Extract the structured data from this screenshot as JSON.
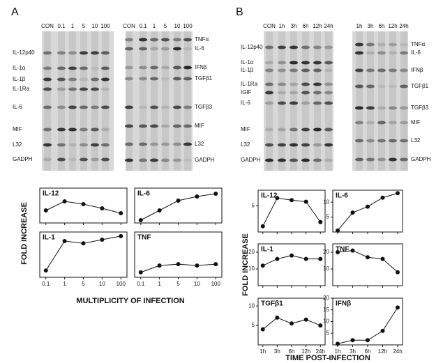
{
  "panels": [
    {
      "label": "A",
      "y_label": "FOLD INCREASE",
      "x_label": "MULTIPLICITY OF INFECTION",
      "gels": [
        {
          "lanes": [
            "CON",
            "0.1",
            "1",
            "5",
            "10",
            "100"
          ],
          "band_labels": [
            "IL-12p40",
            "IL-1α",
            "IL-1β",
            "IL-1Ra",
            "IL-6",
            "MIF",
            "L32",
            "GADPH"
          ]
        },
        {
          "lanes": [
            "CON",
            "0.1",
            "1",
            "5",
            "10",
            "100"
          ],
          "band_labels": [
            "TNFα",
            "IL-6",
            "IFNβ",
            "TGFβ1",
            "TGFβ3",
            "MIF",
            "L32",
            "GADPH"
          ]
        }
      ]
    },
    {
      "label": "B",
      "y_label": "FOLD INCREASE",
      "x_label": "TIME  POST-INFECTION",
      "gels": [
        {
          "lanes": [
            "CON",
            "1h",
            "3h",
            "6h",
            "12h",
            "24h"
          ],
          "band_labels": [
            "IL-12p40",
            "IL-1α",
            "IL-1β",
            "IL-1Ra",
            "IGIF",
            "IL-6",
            "MIF",
            "L32",
            "GADPH"
          ]
        },
        {
          "lanes": [
            "1h",
            "3h",
            "6h",
            "12h",
            "24h"
          ],
          "band_labels": [
            "TNFα",
            "IL-6",
            "IFNβ",
            "TGFβ1",
            "TGFβ3",
            "MIF",
            "L32",
            "GADPH"
          ]
        }
      ]
    }
  ],
  "chart_data": [
    {
      "type": "line",
      "title": "IL-12",
      "categories": [
        "0.1",
        "1",
        "5",
        "10",
        "100"
      ],
      "values": [
        36,
        62,
        54,
        42,
        28
      ],
      "ylim": [
        0,
        100
      ],
      "yticks": [],
      "xtick_labels": false
    },
    {
      "type": "line",
      "title": "IL-6",
      "categories": [
        "0.1",
        "1",
        "5",
        "10",
        "100"
      ],
      "values": [
        8,
        36,
        64,
        76,
        84
      ],
      "ylim": [
        0,
        100
      ],
      "yticks": [],
      "xtick_labels": false
    },
    {
      "type": "line",
      "title": "IL-1",
      "categories": [
        "0.1",
        "1",
        "5",
        "10",
        "100"
      ],
      "values": [
        15,
        80,
        75,
        83,
        91
      ],
      "ylim": [
        0,
        100
      ],
      "yticks": [],
      "xtick_labels": true
    },
    {
      "type": "line",
      "title": "TNF",
      "categories": [
        "0.1",
        "1",
        "5",
        "10",
        "100"
      ],
      "values": [
        11,
        26,
        29,
        26,
        29
      ],
      "ylim": [
        0,
        100
      ],
      "yticks": [],
      "xtick_labels": true
    },
    {
      "type": "line",
      "title": "IL-12",
      "categories": [
        "1h",
        "3h",
        "6h",
        "12h",
        "24h"
      ],
      "values": [
        1.1,
        6.5,
        6.1,
        5.8,
        1.9
      ],
      "ylim": [
        0,
        8
      ],
      "yticks": [
        5
      ],
      "xtick_labels": false
    },
    {
      "type": "line",
      "title": "IL-6",
      "categories": [
        "1h",
        "3h",
        "6h",
        "12h",
        "24h"
      ],
      "values": [
        0.5,
        6.5,
        8.5,
        11.5,
        13
      ],
      "ylim": [
        0,
        14
      ],
      "yticks": [
        5,
        10
      ],
      "xtick_labels": false
    },
    {
      "type": "line",
      "title": "IL-1",
      "categories": [
        "1h",
        "3h",
        "6h",
        "12h",
        "24h"
      ],
      "values": [
        12,
        16,
        18,
        16,
        16
      ],
      "ylim": [
        0,
        25
      ],
      "yticks": [
        10,
        20
      ],
      "xtick_labels": false
    },
    {
      "type": "line",
      "title": "TNF",
      "categories": [
        "1h",
        "3h",
        "6h",
        "12h",
        "24h"
      ],
      "values": [
        20,
        21,
        17,
        16,
        8
      ],
      "ylim": [
        0,
        25
      ],
      "yticks": [
        10,
        20
      ],
      "xtick_labels": false
    },
    {
      "type": "line",
      "title": "TGFβ1",
      "categories": [
        "1h",
        "3h",
        "6h",
        "12h",
        "24h"
      ],
      "values": [
        4,
        7,
        5.5,
        6.5,
        5
      ],
      "ylim": [
        0,
        12
      ],
      "yticks": [
        5,
        10
      ],
      "xtick_labels": true
    },
    {
      "type": "line",
      "title": "IFNβ",
      "categories": [
        "1h",
        "3h",
        "6h",
        "12h",
        "24h"
      ],
      "values": [
        0.5,
        2,
        2,
        6,
        16
      ],
      "ylim": [
        0,
        20
      ],
      "yticks": [
        5,
        10,
        15,
        20
      ],
      "xtick_labels": true
    }
  ]
}
